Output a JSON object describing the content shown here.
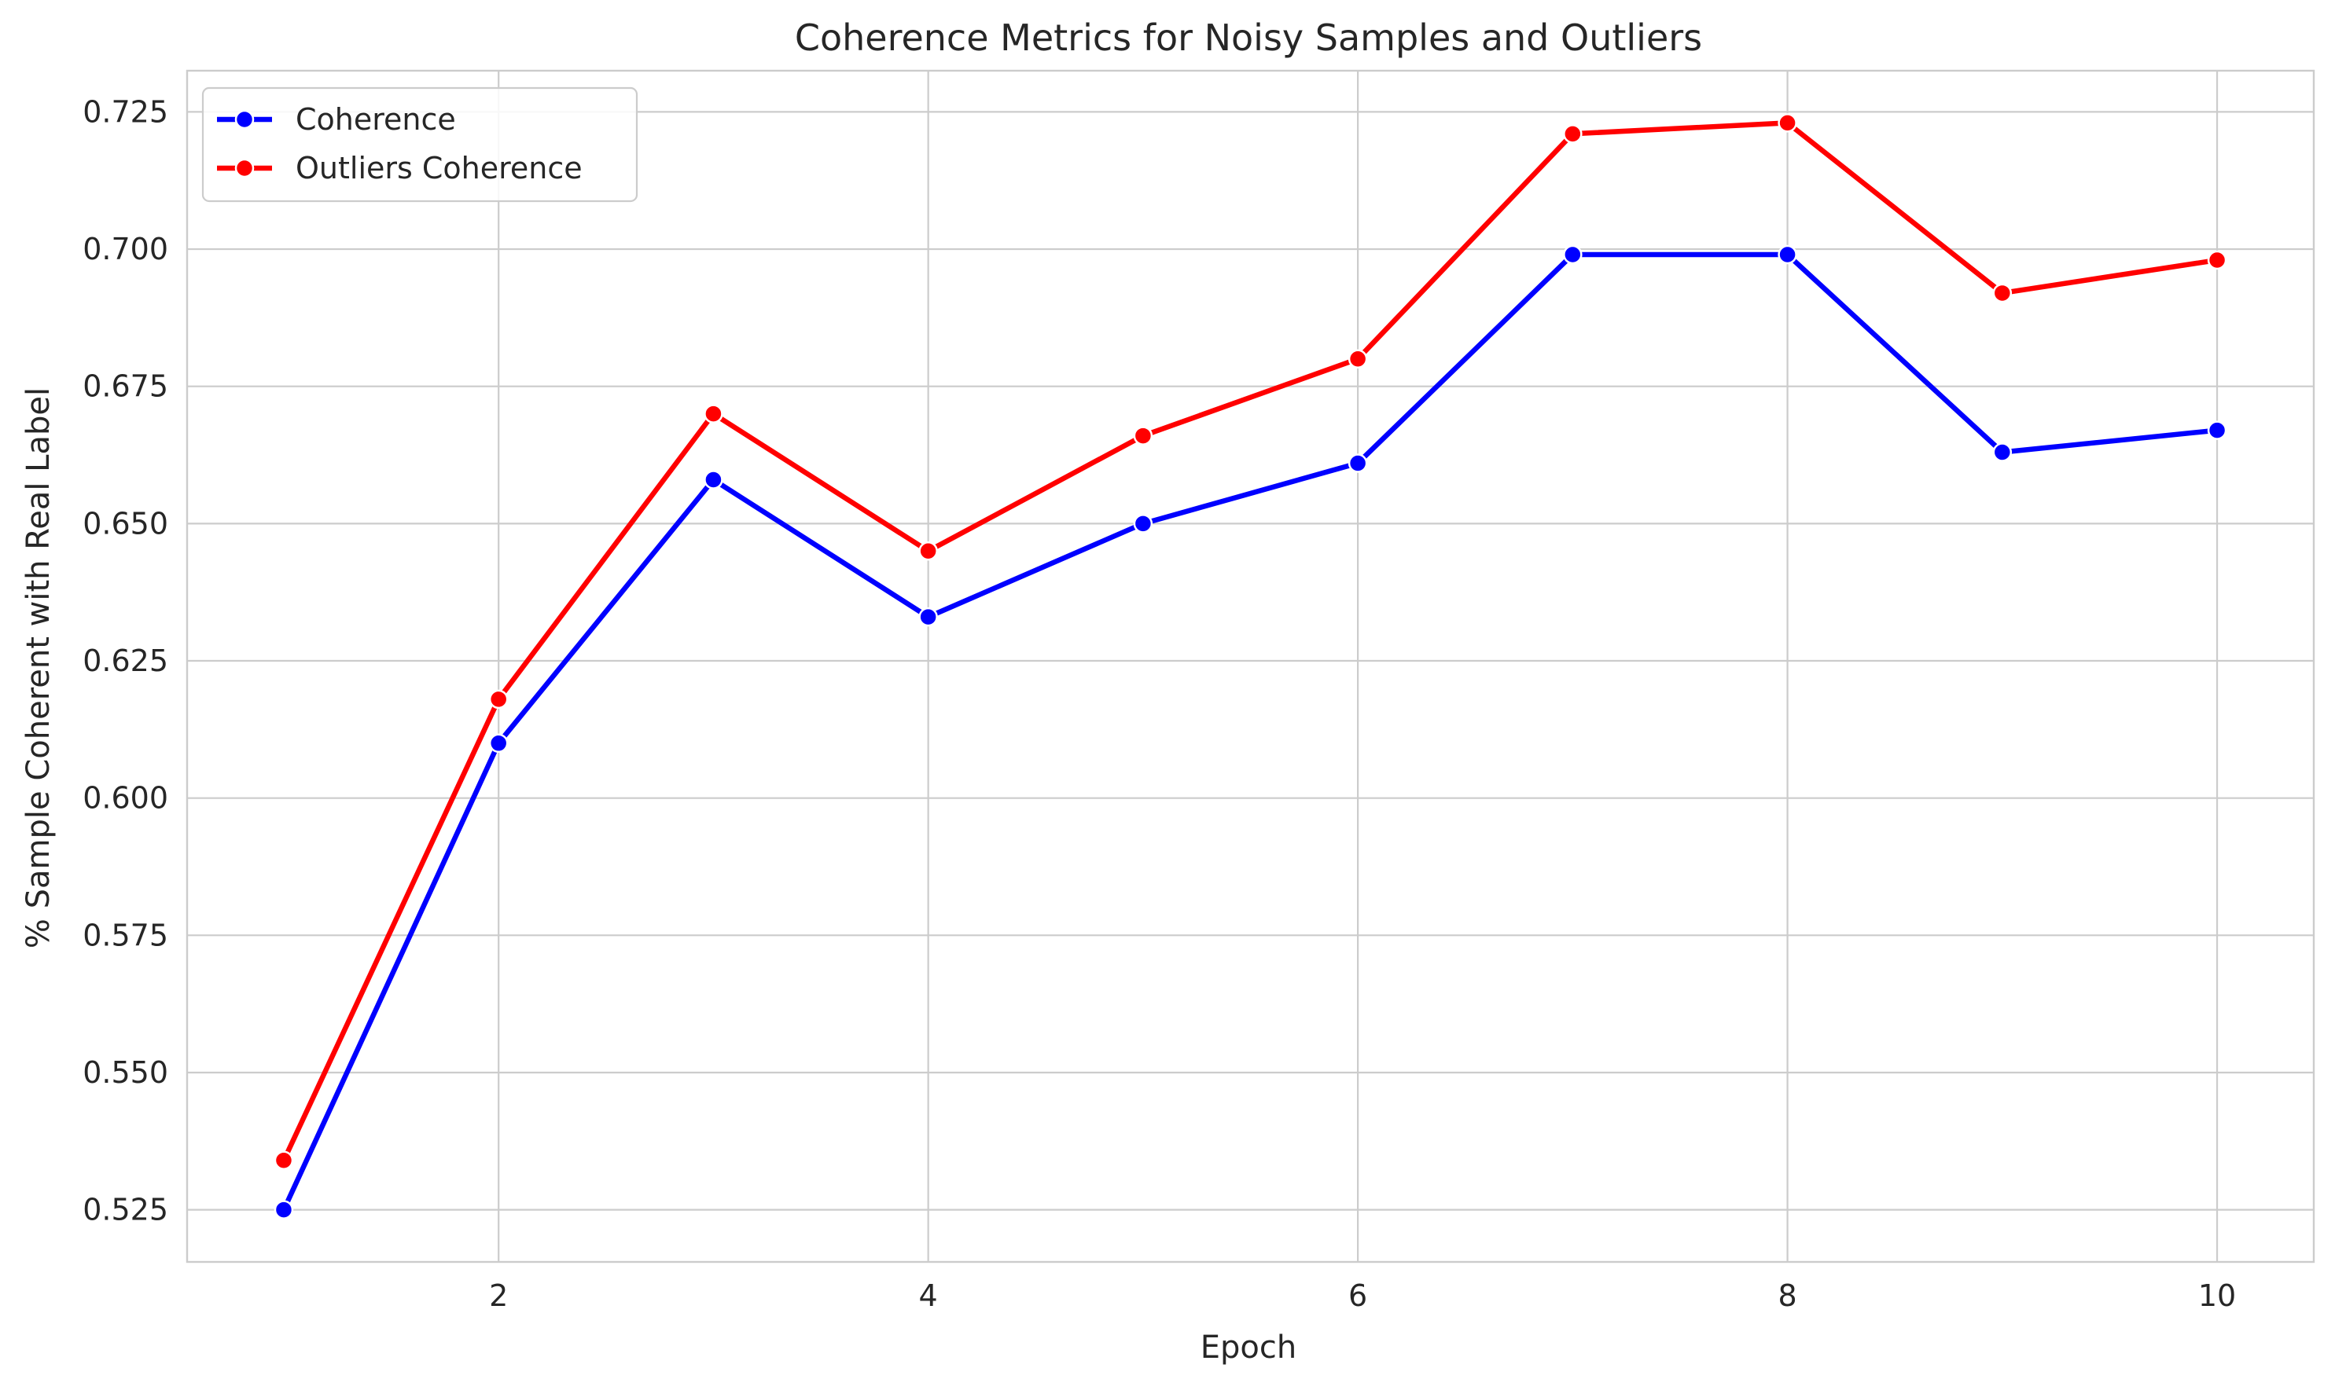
{
  "chart_data": {
    "type": "line",
    "title": "Coherence Metrics for Noisy Samples and Outliers",
    "xlabel": "Epoch",
    "ylabel": "% Sample Coherent with Real Label",
    "x": [
      1,
      2,
      3,
      4,
      5,
      6,
      7,
      8,
      9,
      10
    ],
    "xlim": [
      0.55,
      10.45
    ],
    "ylim": [
      0.5155,
      0.7325
    ],
    "xticks": [
      2,
      4,
      6,
      8,
      10
    ],
    "xtick_labels": [
      "2",
      "4",
      "6",
      "8",
      "10"
    ],
    "yticks": [
      0.525,
      0.55,
      0.575,
      0.6,
      0.625,
      0.65,
      0.675,
      0.7,
      0.725
    ],
    "ytick_labels": [
      "0.525",
      "0.550",
      "0.575",
      "0.600",
      "0.625",
      "0.650",
      "0.675",
      "0.700",
      "0.725"
    ],
    "grid": true,
    "legend_position": "top-left",
    "series": [
      {
        "name": "Coherence",
        "color": "#0000ff",
        "marker": "circle",
        "values": [
          0.525,
          0.61,
          0.658,
          0.633,
          0.65,
          0.661,
          0.699,
          0.699,
          0.663,
          0.667
        ]
      },
      {
        "name": "Outliers Coherence",
        "color": "#ff0000",
        "marker": "circle",
        "values": [
          0.534,
          0.618,
          0.67,
          0.645,
          0.666,
          0.68,
          0.721,
          0.723,
          0.692,
          0.698
        ]
      }
    ]
  }
}
